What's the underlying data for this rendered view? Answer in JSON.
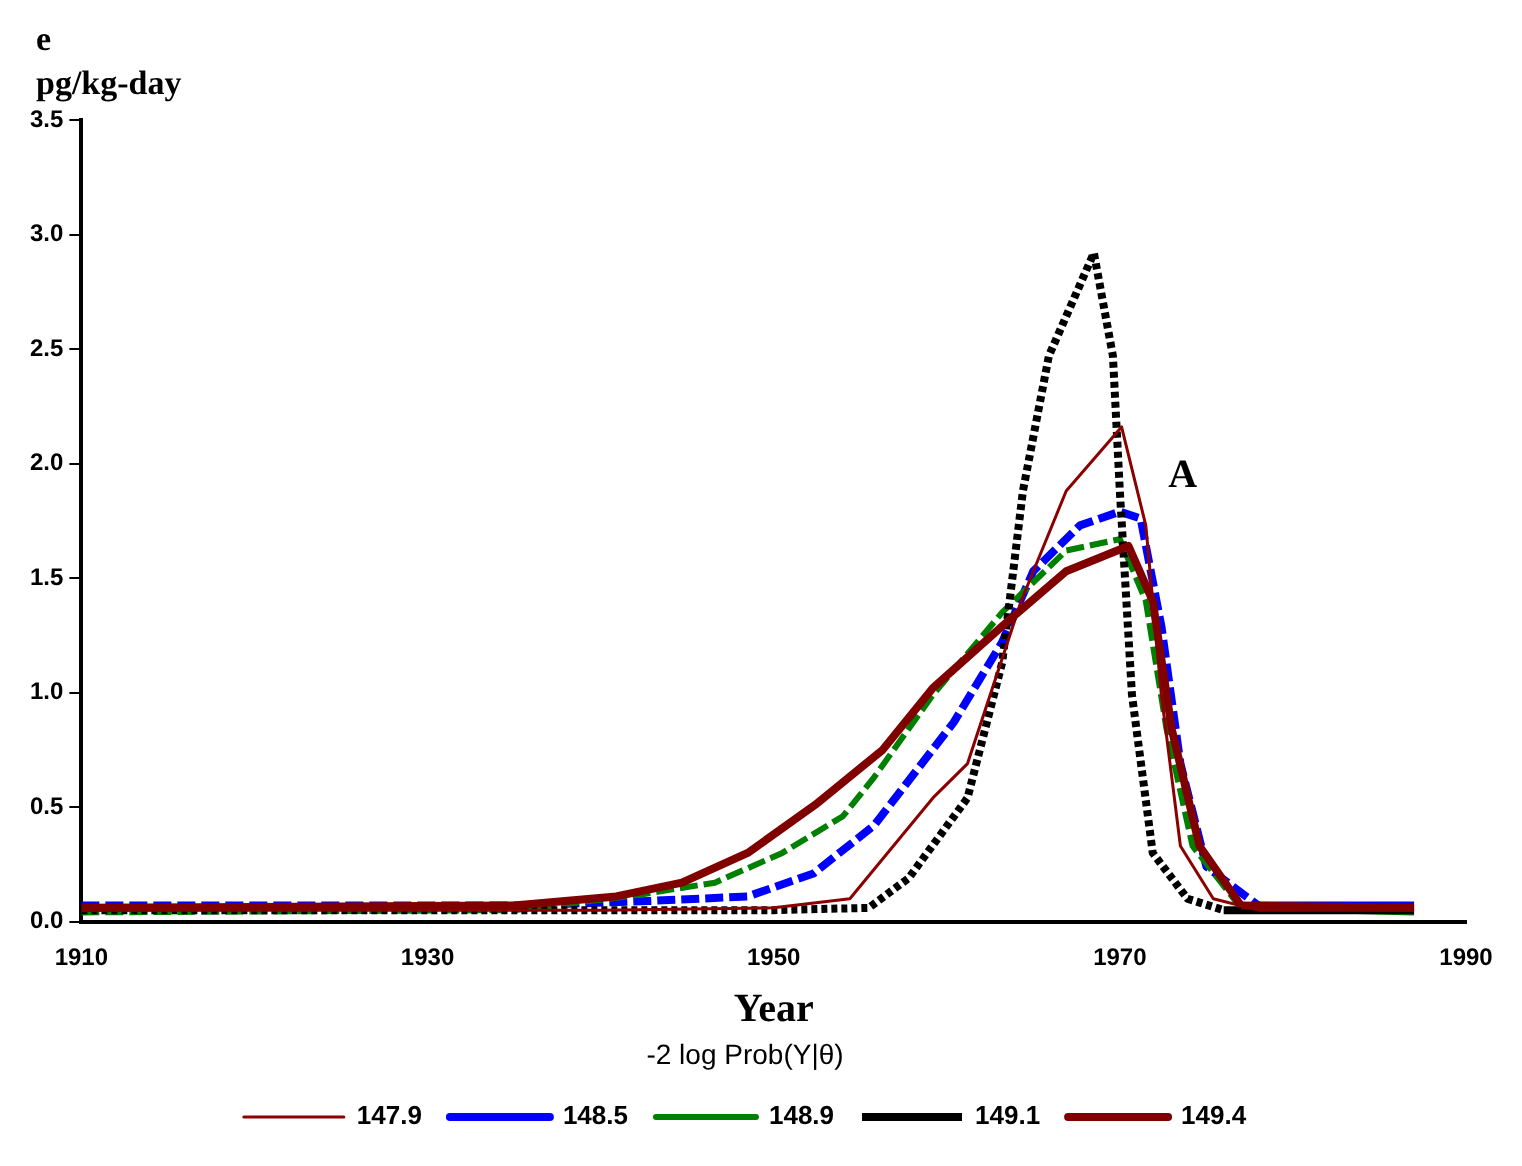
{
  "chart_data": {
    "type": "line",
    "title": "e",
    "ylabel": "pg/kg-day",
    "xlabel": "Year",
    "legend_title": "-2 log Prob(Y|θ)",
    "legend": "bottom",
    "grid": false,
    "marker": "none",
    "xlim": [
      1910,
      1990
    ],
    "xticks": [
      1910,
      1930,
      1950,
      1970,
      1990
    ],
    "ylim": [
      0,
      3.5
    ],
    "yticks": [
      {
        "value": 0,
        "label": "0.0"
      },
      0.5,
      {
        "value": 1,
        "label": "1.0"
      },
      1.5,
      {
        "value": 2,
        "label": "2.0"
      },
      2.5,
      {
        "value": 3,
        "label": "3.0"
      },
      3.5
    ],
    "annotations": [
      "A"
    ],
    "series": [
      {
        "name": "147.9",
        "color": "#8b0000",
        "line_style": "solid",
        "x": [
          1910,
          1940,
          1950,
          1954.4,
          1959.2,
          1961.2,
          1964.3,
          1966.9,
          1970.1,
          1971.5,
          1972.4,
          1973.5,
          1975.4,
          1978,
          1987
        ],
        "values": [
          0.05,
          0.05,
          0.06,
          0.1,
          0.54,
          0.69,
          1.4,
          1.88,
          2.16,
          1.73,
          0.99,
          0.33,
          0.1,
          0.05,
          0.05
        ]
      },
      {
        "name": "148.5",
        "color": "#0000ff",
        "line_style": "dashed",
        "x": [
          1910,
          1935,
          1942.8,
          1948.5,
          1952.3,
          1955.8,
          1960.4,
          1963.2,
          1965,
          1967.7,
          1970,
          1971.2,
          1972.4,
          1973.5,
          1975,
          1978,
          1987
        ],
        "values": [
          0.07,
          0.07,
          0.09,
          0.11,
          0.21,
          0.42,
          0.87,
          1.22,
          1.53,
          1.73,
          1.79,
          1.76,
          1.29,
          0.69,
          0.24,
          0.07,
          0.07
        ]
      },
      {
        "name": "148.9",
        "color": "#008000",
        "line_style": "dashed",
        "x": [
          1910,
          1935,
          1941.6,
          1946.6,
          1950.5,
          1954,
          1955.8,
          1959.2,
          1963.2,
          1966.9,
          1970,
          1971.5,
          1972.7,
          1974.2,
          1977,
          1987
        ],
        "values": [
          0.04,
          0.05,
          0.11,
          0.17,
          0.3,
          0.46,
          0.63,
          0.99,
          1.35,
          1.62,
          1.67,
          1.4,
          0.84,
          0.33,
          0.06,
          0.04
        ]
      },
      {
        "name": "149.1",
        "color": "#000000",
        "line_style": "dotted",
        "x": [
          1910,
          1950,
          1955.5,
          1957.8,
          1961.2,
          1963.2,
          1964.4,
          1965.9,
          1968.5,
          1969.6,
          1970,
          1970.7,
          1971.9,
          1973.9,
          1976,
          1987
        ],
        "values": [
          0.05,
          0.05,
          0.06,
          0.19,
          0.54,
          1.13,
          1.88,
          2.47,
          2.92,
          2.47,
          1.88,
          0.99,
          0.3,
          0.1,
          0.05,
          0.05
        ]
      },
      {
        "name": "149.4",
        "color": "#800000",
        "line_style": "solid",
        "x": [
          1910,
          1935,
          1940.9,
          1944.7,
          1948.5,
          1952.4,
          1956.3,
          1959.2,
          1963.2,
          1966.9,
          1970.5,
          1971.9,
          1973,
          1974.6,
          1977,
          1987
        ],
        "values": [
          0.06,
          0.07,
          0.11,
          0.17,
          0.3,
          0.51,
          0.75,
          1.02,
          1.29,
          1.53,
          1.64,
          1.4,
          0.84,
          0.33,
          0.07,
          0.06
        ]
      }
    ]
  }
}
